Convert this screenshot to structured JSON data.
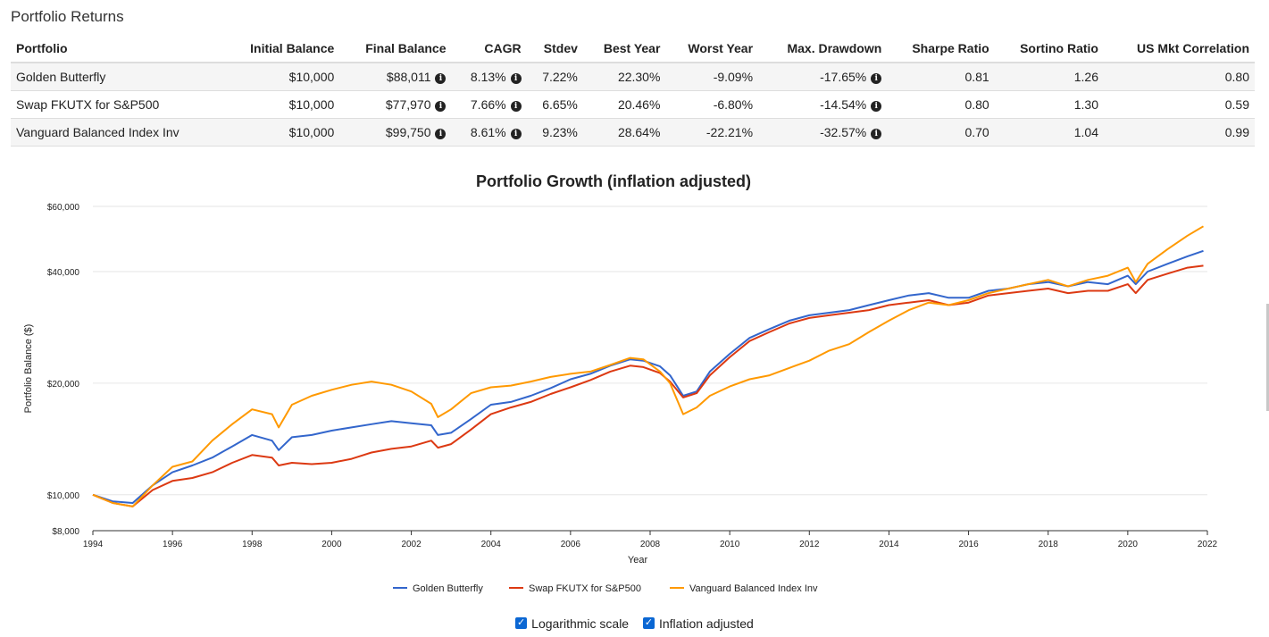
{
  "page_title": "Portfolio Returns",
  "table": {
    "headers": [
      "Portfolio",
      "Initial Balance",
      "Final Balance",
      "CAGR",
      "Stdev",
      "Best Year",
      "Worst Year",
      "Max. Drawdown",
      "Sharpe Ratio",
      "Sortino Ratio",
      "US Mkt Correlation"
    ],
    "rows": [
      {
        "portfolio": "Golden Butterfly",
        "initial": "$10,000",
        "final": "$88,011",
        "cagr": "8.13%",
        "stdev": "7.22%",
        "best": "22.30%",
        "worst": "-9.09%",
        "drawdown": "-17.65%",
        "sharpe": "0.81",
        "sortino": "1.26",
        "corr": "0.80"
      },
      {
        "portfolio": "Swap FKUTX for S&P500",
        "initial": "$10,000",
        "final": "$77,970",
        "cagr": "7.66%",
        "stdev": "6.65%",
        "best": "20.46%",
        "worst": "-6.80%",
        "drawdown": "-14.54%",
        "sharpe": "0.80",
        "sortino": "1.30",
        "corr": "0.59"
      },
      {
        "portfolio": "Vanguard Balanced Index Inv",
        "initial": "$10,000",
        "final": "$99,750",
        "cagr": "8.61%",
        "stdev": "9.23%",
        "best": "28.64%",
        "worst": "-22.21%",
        "drawdown": "-32.57%",
        "sharpe": "0.70",
        "sortino": "1.04",
        "corr": "0.99"
      }
    ]
  },
  "chart_data": {
    "type": "line",
    "title": "Portfolio Growth (inflation adjusted)",
    "xlabel": "Year",
    "ylabel": "Portfolio Balance ($)",
    "yscale": "log",
    "ylim": [
      8000,
      60000
    ],
    "xlim": [
      1994,
      2022
    ],
    "yticks": [
      8000,
      10000,
      20000,
      40000,
      60000
    ],
    "ytick_labels": [
      "$8,000",
      "$10,000",
      "$20,000",
      "$40,000",
      "$60,000"
    ],
    "xticks": [
      1994,
      1996,
      1998,
      2000,
      2002,
      2004,
      2006,
      2008,
      2010,
      2012,
      2014,
      2016,
      2018,
      2020,
      2022
    ],
    "xtick_labels": [
      "1994",
      "1996",
      "1998",
      "2000",
      "2002",
      "2004",
      "2006",
      "2008",
      "2010",
      "2012",
      "2014",
      "2016",
      "2018",
      "2020",
      "2022"
    ],
    "legend_position": "bottom",
    "x": [
      1994.0,
      1994.5,
      1995.0,
      1995.5,
      1996.0,
      1996.5,
      1997.0,
      1997.5,
      1998.0,
      1998.5,
      1998.67,
      1999.0,
      1999.5,
      2000.0,
      2000.5,
      2001.0,
      2001.5,
      2002.0,
      2002.5,
      2002.67,
      2003.0,
      2003.5,
      2004.0,
      2004.5,
      2005.0,
      2005.5,
      2006.0,
      2006.5,
      2007.0,
      2007.5,
      2007.83,
      2008.25,
      2008.5,
      2008.83,
      2009.17,
      2009.5,
      2010.0,
      2010.5,
      2011.0,
      2011.5,
      2012.0,
      2012.5,
      2013.0,
      2013.5,
      2014.0,
      2014.5,
      2015.0,
      2015.5,
      2016.0,
      2016.5,
      2017.0,
      2017.5,
      2018.0,
      2018.5,
      2019.0,
      2019.5,
      2020.0,
      2020.2,
      2020.5,
      2021.0,
      2021.5,
      2021.9
    ],
    "series": [
      {
        "name": "Golden Butterfly",
        "color": "#3366cc",
        "values": [
          10000,
          9600,
          9500,
          10600,
          11500,
          12000,
          12600,
          13500,
          14500,
          14000,
          13200,
          14300,
          14500,
          14900,
          15200,
          15500,
          15800,
          15600,
          15400,
          14500,
          14700,
          16000,
          17500,
          17800,
          18500,
          19400,
          20500,
          21200,
          22300,
          23200,
          23000,
          22200,
          21000,
          18500,
          19000,
          21500,
          24000,
          26500,
          28000,
          29500,
          30500,
          31000,
          31500,
          32500,
          33500,
          34500,
          35000,
          34000,
          34000,
          35500,
          36000,
          37000,
          37500,
          36500,
          37500,
          37000,
          39000,
          37000,
          40000,
          42000,
          44000,
          45500
        ]
      },
      {
        "name": "Swap FKUTX for S&P500",
        "color": "#dc3912",
        "values": [
          10000,
          9500,
          9300,
          10300,
          10900,
          11100,
          11500,
          12200,
          12800,
          12600,
          12000,
          12200,
          12100,
          12200,
          12500,
          13000,
          13300,
          13500,
          14000,
          13400,
          13700,
          15000,
          16500,
          17200,
          17800,
          18700,
          19500,
          20400,
          21500,
          22300,
          22100,
          21300,
          20200,
          18300,
          18800,
          21000,
          23500,
          26000,
          27500,
          29000,
          30000,
          30500,
          31000,
          31500,
          32500,
          33000,
          33500,
          32500,
          33000,
          34500,
          35000,
          35500,
          36000,
          35000,
          35500,
          35500,
          37000,
          35000,
          38000,
          39500,
          41000,
          41500
        ]
      },
      {
        "name": "Vanguard Balanced Index Inv",
        "color": "#ff9900",
        "values": [
          10000,
          9500,
          9300,
          10600,
          11900,
          12300,
          14000,
          15500,
          17000,
          16500,
          15200,
          17500,
          18500,
          19200,
          19800,
          20200,
          19800,
          19000,
          17600,
          16200,
          17000,
          18800,
          19500,
          19700,
          20200,
          20800,
          21200,
          21500,
          22400,
          23400,
          23200,
          21500,
          20000,
          16500,
          17200,
          18500,
          19600,
          20500,
          21000,
          22000,
          23000,
          24500,
          25500,
          27500,
          29500,
          31500,
          33000,
          32500,
          33500,
          35000,
          36000,
          37000,
          38000,
          36500,
          38000,
          39000,
          41000,
          37500,
          42000,
          46000,
          50000,
          53000
        ]
      }
    ]
  },
  "controls": {
    "log_label": "Logarithmic scale",
    "inflation_label": "Inflation adjusted"
  }
}
